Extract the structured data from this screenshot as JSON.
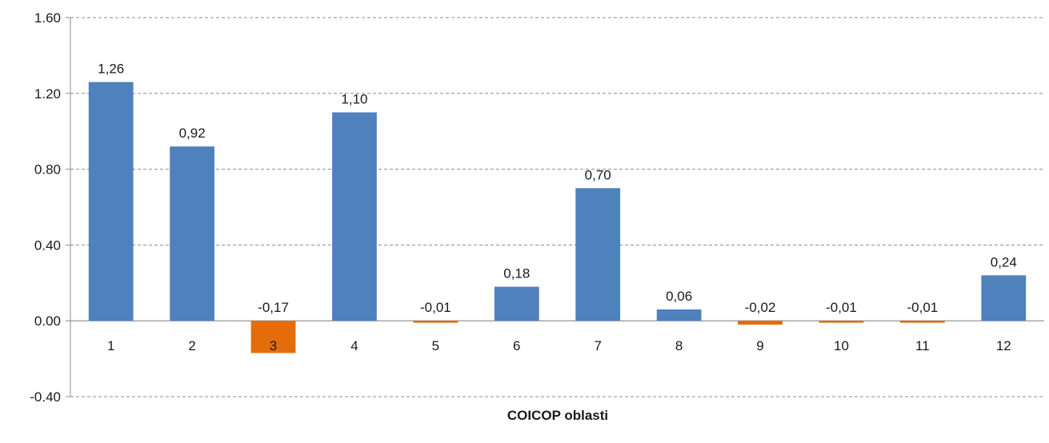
{
  "chart_data": {
    "type": "bar",
    "categories": [
      "1",
      "2",
      "3",
      "4",
      "5",
      "6",
      "7",
      "8",
      "9",
      "10",
      "11",
      "12"
    ],
    "values": [
      1.26,
      0.92,
      -0.17,
      1.1,
      -0.01,
      0.18,
      0.7,
      0.06,
      -0.02,
      -0.01,
      -0.01,
      0.24
    ],
    "data_labels": [
      "1,26",
      "0,92",
      "-0,17",
      "1,10",
      "-0,01",
      "0,18",
      "0,70",
      "0,06",
      "-0,02",
      "-0,01",
      "-0,01",
      "0,24"
    ],
    "bar_colors": [
      "#4f81bd",
      "#4f81bd",
      "#e46c0a",
      "#4f81bd",
      "#e46c0a",
      "#4f81bd",
      "#4f81bd",
      "#4f81bd",
      "#e46c0a",
      "#e46c0a",
      "#e46c0a",
      "#4f81bd"
    ],
    "title": "",
    "xlabel": "COICOP oblasti",
    "ylabel": "",
    "ylim": [
      -0.4,
      1.6
    ],
    "yticks": [
      -0.4,
      0.0,
      0.4,
      0.8,
      1.2,
      1.6
    ],
    "ytick_labels": [
      "-0.40",
      "0.00",
      "0.40",
      "0.80",
      "1.20",
      "1.60"
    ],
    "grid": true,
    "legend": "none",
    "colors": {
      "positive": "#4f81bd",
      "negative": "#e46c0a",
      "grid": "#8c8c8c",
      "axis": "#8c8c8c"
    }
  }
}
